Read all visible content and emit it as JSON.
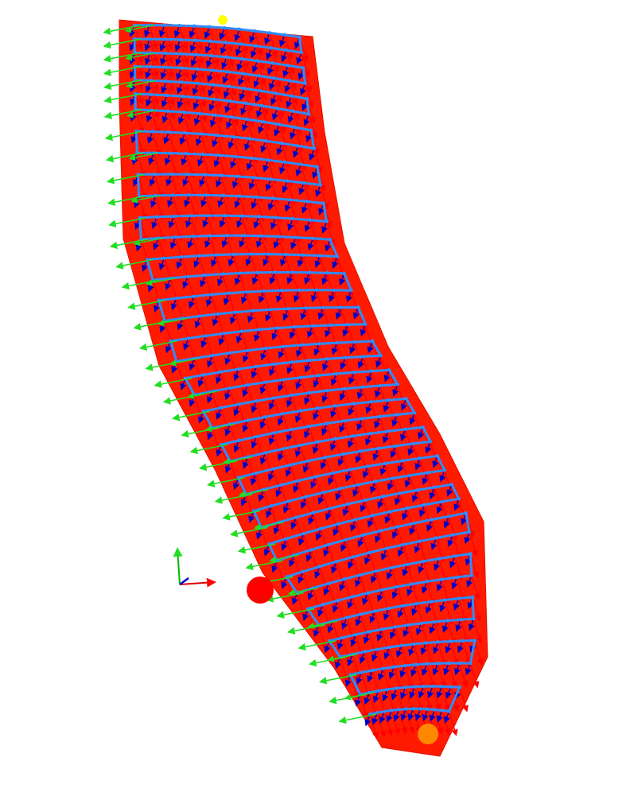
{
  "scene": {
    "background": "#ffffff",
    "colors": {
      "surface": "#ff1a00",
      "surface_edge": "#e01000",
      "path": "#2f8cff",
      "normal_arrow": "#ff0000",
      "tangent_arrow": "#22dd22",
      "binormal_arrow": "#0000cc",
      "start_marker": "#ffff00",
      "end_marker": "#ff8800",
      "target_marker": "#ff0000"
    },
    "axes_icon": {
      "x_color": "#dd0000",
      "y_color": "#00bb00",
      "z_color": "#0000dd"
    },
    "markers": [
      {
        "name": "start-marker",
        "color": "#ffff00"
      },
      {
        "name": "end-marker",
        "color": "#ff8800"
      },
      {
        "name": "target-marker",
        "color": "#ff0000"
      }
    ],
    "path_rows": 40,
    "points_per_row": 12
  }
}
